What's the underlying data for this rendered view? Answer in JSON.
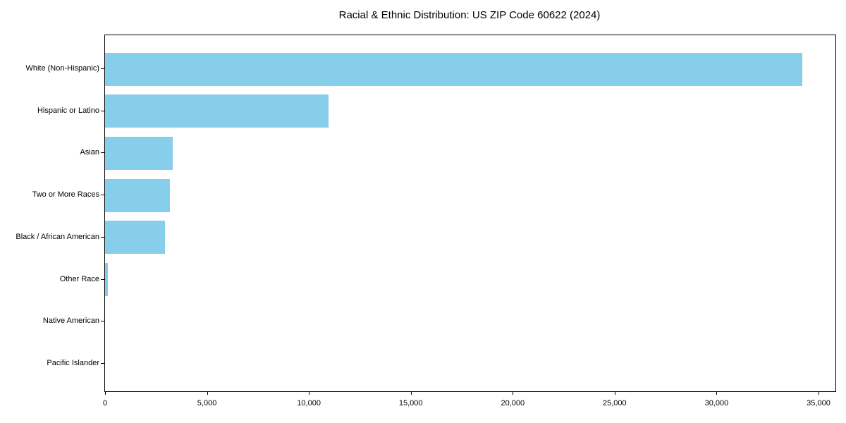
{
  "chart_data": {
    "type": "bar",
    "orientation": "horizontal",
    "title": "Racial & Ethnic Distribution: US ZIP Code 60622 (2024)",
    "categories": [
      "White (Non-Hispanic)",
      "Hispanic or Latino",
      "Asian",
      "Two or More Races",
      "Black / African American",
      "Other Race",
      "Native American",
      "Pacific Islander"
    ],
    "values": [
      34200,
      10950,
      3330,
      3170,
      2950,
      150,
      0,
      0
    ],
    "xlim": [
      0,
      35000
    ],
    "x_ticks": [
      0,
      5000,
      10000,
      15000,
      20000,
      25000,
      30000,
      35000
    ],
    "x_tick_labels": [
      "0",
      "5,000",
      "10,000",
      "15,000",
      "20,000",
      "25,000",
      "30,000",
      "35,000"
    ],
    "xlabel": "",
    "ylabel": "",
    "bar_color": "#87CEEB",
    "axis_color": "#000000",
    "background_color": "#ffffff",
    "grid": false,
    "legend": false
  }
}
